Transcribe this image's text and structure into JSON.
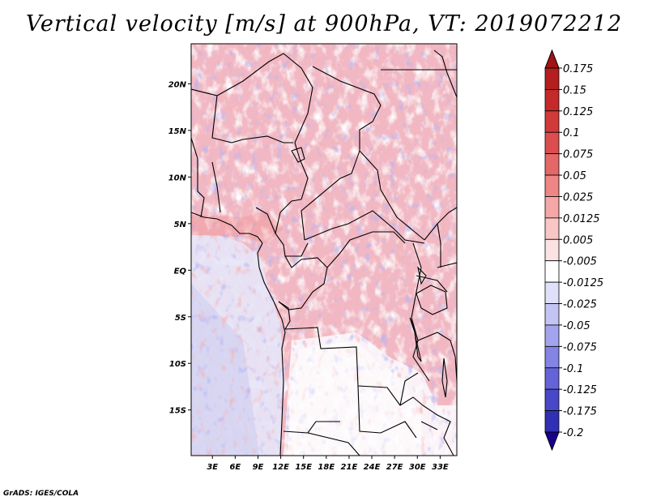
{
  "title": "Vertical velocity [m/s] at 900hPa, VT: 2019072212",
  "credit": "GrADS: IGES/COLA",
  "map": {
    "lat_labels": [
      {
        "lat": 20,
        "label": "20N"
      },
      {
        "lat": 15,
        "label": "15N"
      },
      {
        "lat": 10,
        "label": "10N"
      },
      {
        "lat": 5,
        "label": "5N"
      },
      {
        "lat": 0,
        "label": "EQ"
      },
      {
        "lat": -5,
        "label": "5S"
      },
      {
        "lat": -10,
        "label": "10S"
      },
      {
        "lat": -15,
        "label": "15S"
      }
    ],
    "lon_labels": [
      {
        "lon": 3,
        "label": "3E"
      },
      {
        "lon": 6,
        "label": "6E"
      },
      {
        "lon": 9,
        "label": "9E"
      },
      {
        "lon": 12,
        "label": "12E"
      },
      {
        "lon": 15,
        "label": "15E"
      },
      {
        "lon": 18,
        "label": "18E"
      },
      {
        "lon": 21,
        "label": "21E"
      },
      {
        "lon": 24,
        "label": "24E"
      },
      {
        "lon": 27,
        "label": "27E"
      },
      {
        "lon": 30,
        "label": "30E"
      },
      {
        "lon": 33,
        "label": "33E"
      }
    ],
    "lon_range": [
      0.2,
      35.2
    ],
    "lat_range": [
      -19.9,
      24.3
    ]
  },
  "colorbar": {
    "levels": [
      {
        "label": "0.175",
        "color": "#b41e1e"
      },
      {
        "label": "0.15",
        "color": "#c42a2a"
      },
      {
        "label": "0.125",
        "color": "#d13a3a"
      },
      {
        "label": "0.1",
        "color": "#dc4e4e"
      },
      {
        "label": "0.075",
        "color": "#e56868"
      },
      {
        "label": "0.05",
        "color": "#ee8686"
      },
      {
        "label": "0.025",
        "color": "#f5a6a6"
      },
      {
        "label": "0.0125",
        "color": "#f9c6c6"
      },
      {
        "label": "0.005",
        "color": "#fce2e2"
      },
      {
        "label": "-0.005",
        "color": "#ffffff"
      },
      {
        "label": "-0.0125",
        "color": "#e0e0fa"
      },
      {
        "label": "-0.025",
        "color": "#c4c4f4"
      },
      {
        "label": "-0.05",
        "color": "#a4a4ee"
      },
      {
        "label": "-0.075",
        "color": "#8484e4"
      },
      {
        "label": "-0.1",
        "color": "#6464d8"
      },
      {
        "label": "-0.125",
        "color": "#4848c8"
      },
      {
        "label": "-0.175",
        "color": "#3030b4"
      },
      {
        "label": "-0.2",
        "color": "#1c1ca0"
      }
    ],
    "top_arrow_color": "#a01414",
    "bottom_arrow_color": "#1a0090"
  }
}
